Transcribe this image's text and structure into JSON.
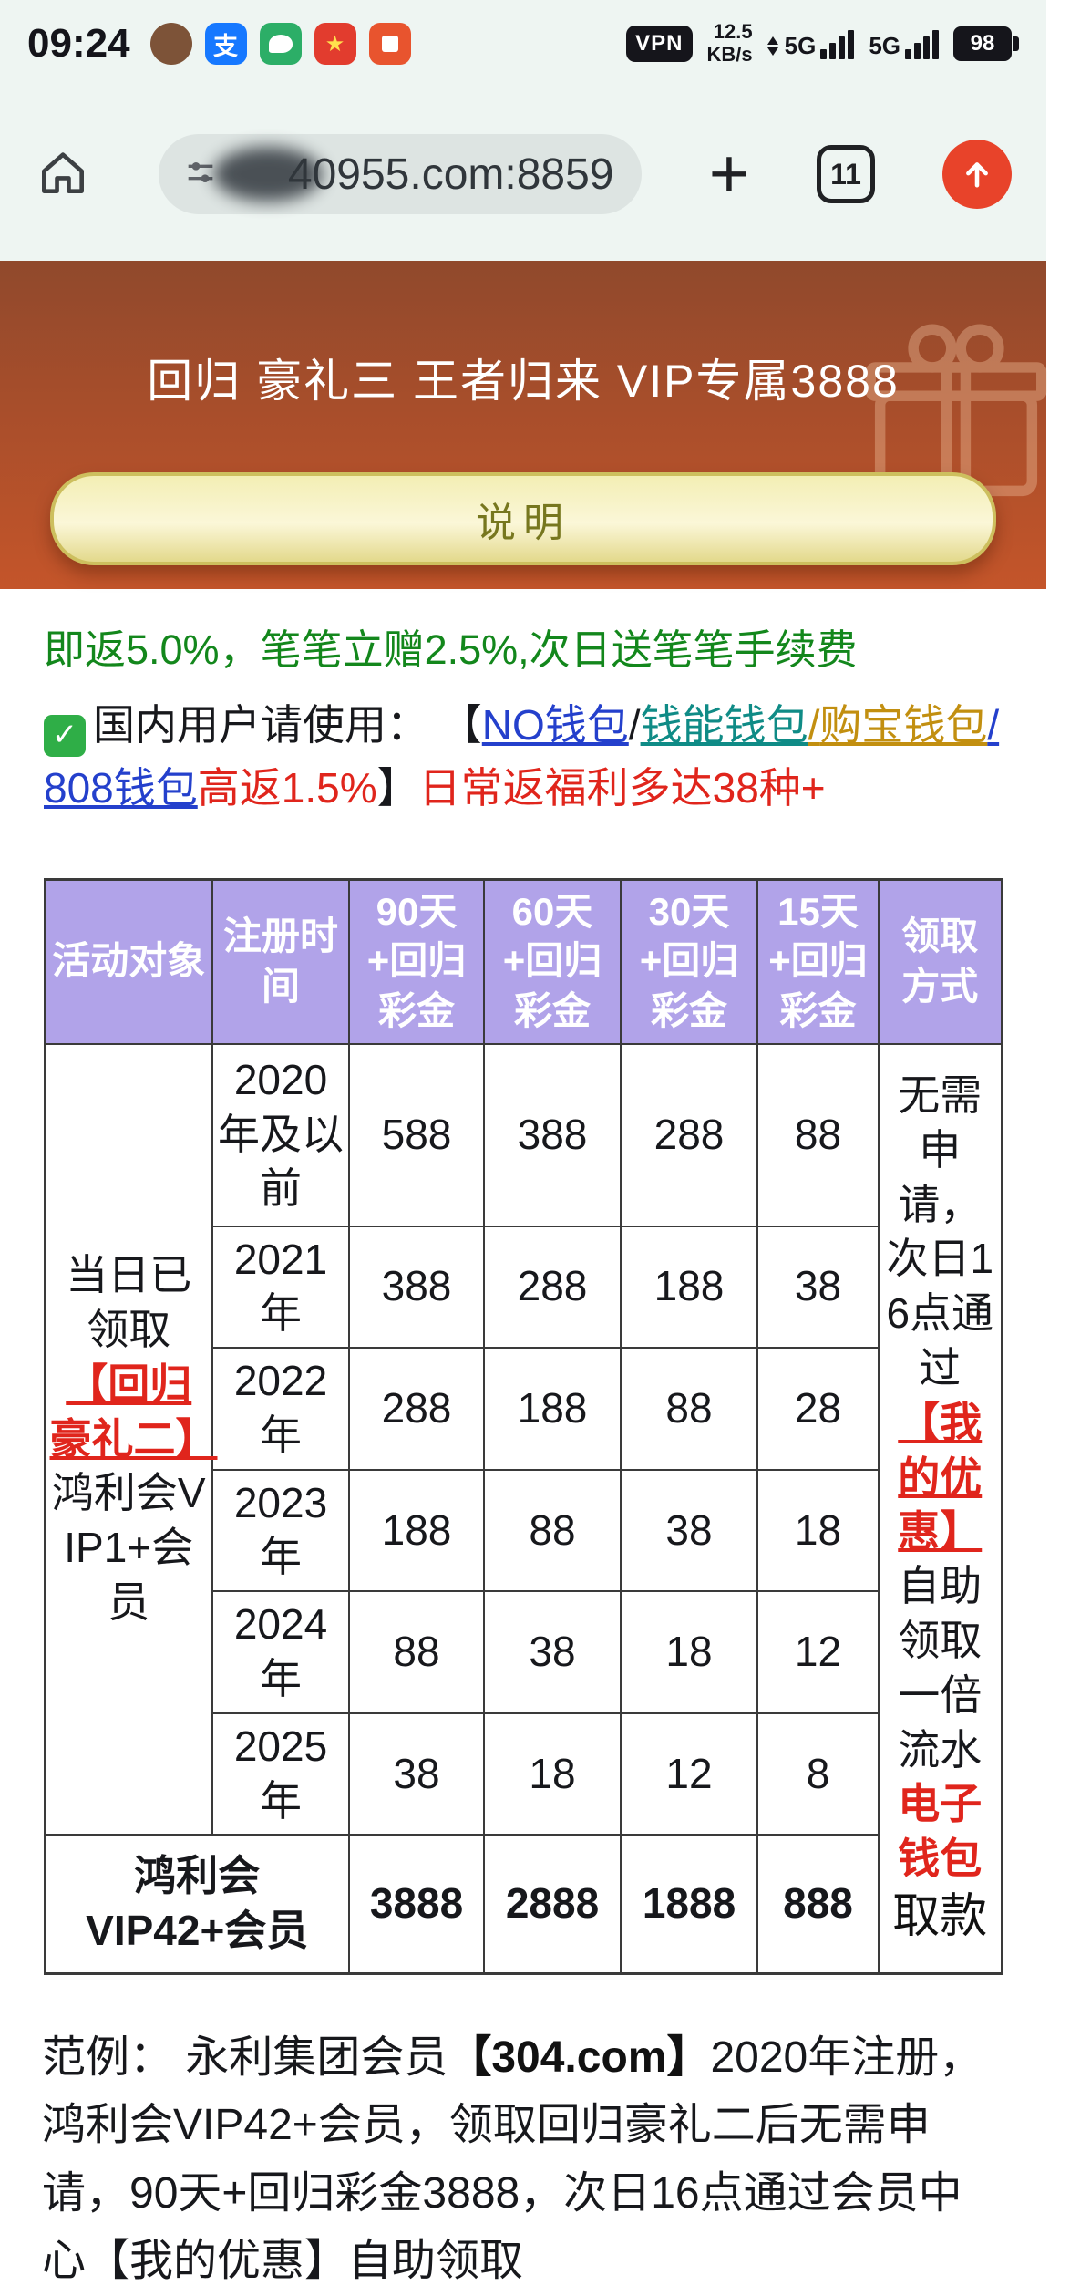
{
  "statusbar": {
    "time": "09:24",
    "vpn_label": "VPN",
    "speed_value": "12.5",
    "speed_unit": "KB/s",
    "network_a": "5G",
    "network_b": "5G",
    "battery_percent": "98",
    "icons": {
      "alipay_glyph": "支"
    }
  },
  "browser": {
    "url": "40955.com:8859",
    "plus": "+",
    "tab_count": "11"
  },
  "hero": {
    "title": "回归 豪礼三 王者归来 VIP专属3888",
    "button_label": "说明"
  },
  "promo": {
    "line1": "即返5.0%，笔笔立赠2.5%,次日送笔笔手续费",
    "line2_segments": [
      {
        "text": "✓",
        "cls": "checkbox",
        "name": "green-check-icon"
      },
      {
        "text": "国内用户请使用：  ",
        "cls": "k"
      },
      {
        "text": "【",
        "cls": "k"
      },
      {
        "text": "NO钱包",
        "cls": "blue",
        "name": "no-wallet-link"
      },
      {
        "text": "/",
        "cls": "k"
      },
      {
        "text": "钱能钱包",
        "cls": "teal",
        "name": "qianneng-wallet-link"
      },
      {
        "text": "/",
        "cls": "gold"
      },
      {
        "text": "购宝钱包",
        "cls": "gold",
        "name": "goubao-wallet-link"
      },
      {
        "text": "/",
        "cls": "blue"
      },
      {
        "text": "808钱包",
        "cls": "blue",
        "name": "wallet-808-link"
      },
      {
        "text": "高返1.5%",
        "cls": "red"
      },
      {
        "text": "】",
        "cls": "k"
      },
      {
        "text": "日常返福利多达38种+",
        "cls": "red"
      }
    ]
  },
  "table": {
    "headers": [
      "活动对象",
      "注册时\n间",
      "90天\n+回归\n彩金",
      "60天\n+回归\n彩金",
      "30天\n+回归\n彩金",
      "15天\n+回归\n彩金",
      "领取\n方式"
    ],
    "left_cell_segments": [
      {
        "text": "当日已领取",
        "cls": "k"
      },
      {
        "text": "【回归豪礼二】",
        "cls": "redlink",
        "name": "huigui-haoli-2-link"
      },
      {
        "text": "鸿利会VIP1+会员",
        "cls": "k"
      }
    ],
    "right_cell_segments": [
      {
        "text": "无需申请，次日16点通过",
        "cls": "k"
      },
      {
        "text": "【我的优惠】",
        "cls": "redlink",
        "name": "my-discounts-link"
      },
      {
        "text": "自助领取一倍流水",
        "cls": "k"
      },
      {
        "text": "电子钱包",
        "cls": "redbold"
      },
      {
        "text": "取款",
        "cls": "kbig"
      }
    ],
    "rows": [
      {
        "period": "2020\n年及以\n前",
        "d90": "588",
        "d60": "388",
        "d30": "288",
        "d15": "88"
      },
      {
        "period": "2021\n年",
        "d90": "388",
        "d60": "288",
        "d30": "188",
        "d15": "38"
      },
      {
        "period": "2022\n年",
        "d90": "288",
        "d60": "188",
        "d30": "88",
        "d15": "28"
      },
      {
        "period": "2023\n年",
        "d90": "188",
        "d60": "88",
        "d30": "38",
        "d15": "18"
      },
      {
        "period": "2024\n年",
        "d90": "88",
        "d60": "38",
        "d30": "18",
        "d15": "12"
      },
      {
        "period": "2025\n年",
        "d90": "38",
        "d60": "18",
        "d30": "12",
        "d15": "8"
      }
    ],
    "footer": {
      "label": "鸿利会\nVIP42+会员",
      "d90": "3888",
      "d60": "2888",
      "d30": "1888",
      "d15": "888"
    }
  },
  "example": {
    "segments": [
      {
        "text": "范例： 永利集团会员",
        "cls": "k"
      },
      {
        "text": "【304.com】",
        "cls": "kbold"
      },
      {
        "text": "2020年注册，鸿利会VIP42+会员，领取回归豪礼二后无需申请，90天+回归彩金3888，次日16点通过会员中心【我的优惠】自助领取",
        "cls": "k"
      }
    ]
  },
  "colors": {
    "hero_gradient_top": "#90492c",
    "hero_gradient_bottom": "#c4552a",
    "table_header_purple": "#b1a3e9",
    "highlight_red": "#e0251c",
    "promo_green": "#13871c",
    "link_blue": "#2440cc",
    "link_teal": "#0f8b86",
    "link_gold": "#c28f10",
    "update_button_orange": "#e8432a"
  }
}
